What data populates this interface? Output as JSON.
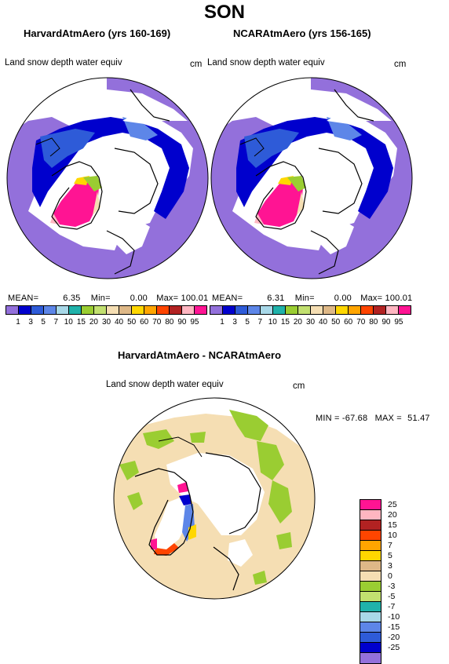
{
  "page": {
    "season": "SON",
    "left_panel": {
      "title": "HarvardAtmAero (yrs 160-169)",
      "variable": "Land snow depth water equiv",
      "unit": "cm",
      "mean_label": "MEAN=",
      "mean": "6.35",
      "min_label": "Min=",
      "min": "0.00",
      "max_label": "Max=",
      "max": "100.01"
    },
    "right_panel": {
      "title": "NCARAtmAero (yrs 156-165)",
      "variable": "Land snow depth water equiv",
      "unit": "cm",
      "mean_label": "MEAN=",
      "mean": "6.31",
      "min_label": "Min=",
      "min": "0.00",
      "max_label": "Max=",
      "max": "100.01"
    },
    "diff_panel": {
      "title": "HarvardAtmAero - NCARAtmAero",
      "variable": "Land snow depth water equiv",
      "unit": "cm",
      "min_label": "MIN =",
      "min": "-67.68",
      "max_label": "MAX =",
      "max": "51.47"
    },
    "top_colorbar": {
      "colors": [
        "#9370db",
        "#0000cd",
        "#2e5bd8",
        "#5d86e8",
        "#a8d8e8",
        "#20b2aa",
        "#9acd32",
        "#c2e070",
        "#f5deb3",
        "#deb887",
        "#ffd700",
        "#ffa500",
        "#ff4500",
        "#b22222",
        "#ffb6c1",
        "#ff1493"
      ],
      "ticks": [
        "1",
        "3",
        "5",
        "7",
        "10",
        "15",
        "20",
        "30",
        "40",
        "50",
        "60",
        "70",
        "80",
        "90",
        "95"
      ]
    },
    "diff_colorbar": {
      "colors": [
        "#ff1493",
        "#ffb6c1",
        "#b22222",
        "#ff4500",
        "#ffa500",
        "#ffd700",
        "#deb887",
        "#f5deb3",
        "#9acd32",
        "#c2e070",
        "#20b2aa",
        "#a8d8e8",
        "#5d86e8",
        "#2e5bd8",
        "#0000cd",
        "#9370db"
      ],
      "ticks": [
        "25",
        "20",
        "15",
        "10",
        "7",
        "5",
        "3",
        "0",
        "-3",
        "-5",
        "-7",
        "-10",
        "-15",
        "-20",
        "-25"
      ]
    }
  }
}
